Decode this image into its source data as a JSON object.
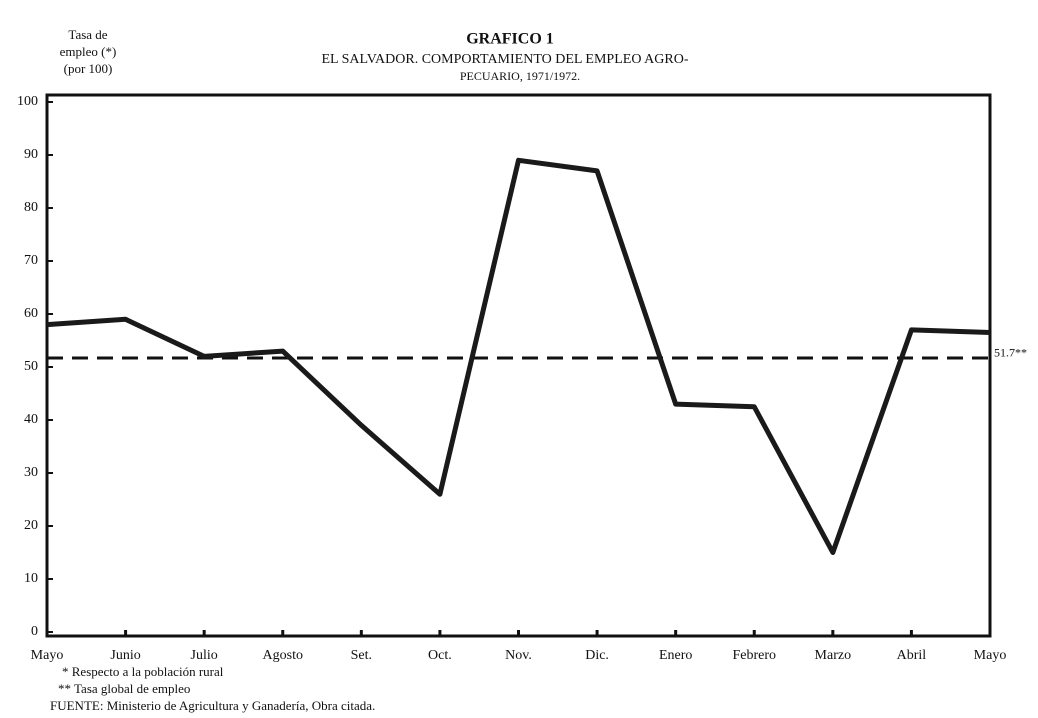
{
  "chart_data": {
    "type": "line",
    "title": "GRAFICO 1",
    "subtitle": [
      "EL SALVADOR. COMPORTAMIENTO DEL EMPLEO AGRO-",
      "PECUARIO, 1971/1972."
    ],
    "y_label": [
      "Tasa de",
      "empleo (*)",
      "(por 100)"
    ],
    "categories": [
      "Mayo",
      "Junio",
      "Julio",
      "Agosto",
      "Set.",
      "Oct.",
      "Nov.",
      "Dic.",
      "Enero",
      "Febrero",
      "Marzo",
      "Abril",
      "Mayo"
    ],
    "values": [
      58,
      59,
      52,
      53,
      39,
      26,
      89,
      87,
      43,
      42.5,
      15,
      57,
      56.5
    ],
    "color": "#1a1a1a",
    "reference": {
      "value": 51.7,
      "label": "51.7**"
    },
    "ylim": [
      0,
      100
    ],
    "yticks": [
      0,
      10,
      20,
      30,
      40,
      50,
      60,
      70,
      80,
      90,
      100
    ],
    "notes": [
      "* Respecto a la población rural",
      "** Tasa global de empleo",
      "FUENTE: Ministerio de Agricultura y Ganadería, Obra citada."
    ]
  }
}
